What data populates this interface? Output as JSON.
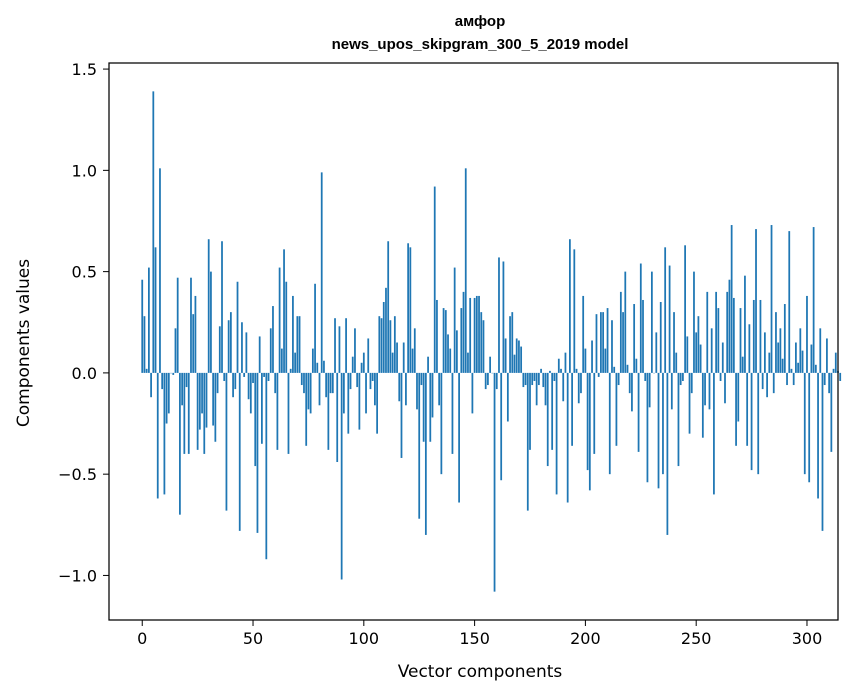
{
  "chart_data": {
    "type": "bar",
    "title": "амфор",
    "subtitle": "news_upos_skipgram_300_5_2019 model",
    "xlabel": "Vector components",
    "ylabel": "Components values",
    "xlim": [
      -15,
      314
    ],
    "ylim": [
      -1.22,
      1.53
    ],
    "xticks": [
      0,
      50,
      100,
      150,
      200,
      250,
      300
    ],
    "xtick_labels": [
      "0",
      "50",
      "100",
      "150",
      "200",
      "250",
      "300"
    ],
    "yticks": [
      -1.0,
      -0.5,
      0.0,
      0.5,
      1.0,
      1.5
    ],
    "ytick_labels": [
      "−1.0",
      "−0.5",
      "0.0",
      "0.5",
      "1.0",
      "1.5"
    ],
    "grid": false,
    "legend": null,
    "bar_color": "#1f77b4",
    "x_start": 0,
    "values": [
      0.46,
      0.28,
      0.02,
      0.52,
      -0.12,
      1.39,
      0.62,
      -0.62,
      1.01,
      -0.08,
      -0.6,
      -0.25,
      -0.2,
      0.0,
      -0.01,
      0.22,
      0.47,
      -0.7,
      -0.16,
      -0.4,
      -0.07,
      -0.4,
      0.47,
      0.29,
      0.38,
      -0.38,
      -0.28,
      -0.2,
      -0.4,
      -0.27,
      0.66,
      0.5,
      -0.26,
      -0.34,
      -0.1,
      0.23,
      0.65,
      -0.04,
      -0.68,
      0.26,
      0.3,
      -0.12,
      -0.08,
      0.45,
      -0.78,
      0.25,
      -0.02,
      0.2,
      -0.13,
      -0.2,
      -0.05,
      -0.46,
      -0.79,
      0.18,
      -0.35,
      -0.02,
      -0.92,
      -0.04,
      0.22,
      0.33,
      -0.1,
      -0.38,
      0.52,
      0.12,
      0.61,
      0.45,
      -0.4,
      0.02,
      0.38,
      0.1,
      0.28,
      0.28,
      -0.06,
      -0.1,
      -0.36,
      -0.18,
      -0.2,
      0.12,
      0.44,
      0.05,
      -0.16,
      0.99,
      0.06,
      -0.12,
      -0.38,
      -0.1,
      -0.1,
      0.27,
      -0.44,
      0.23,
      -1.02,
      -0.2,
      0.27,
      -0.3,
      -0.08,
      0.08,
      0.22,
      -0.07,
      -0.28,
      0.05,
      0.1,
      -0.2,
      0.17,
      -0.08,
      -0.04,
      -0.16,
      -0.3,
      0.28,
      0.27,
      0.35,
      0.42,
      0.65,
      0.26,
      0.1,
      0.28,
      0.15,
      -0.14,
      -0.42,
      0.15,
      -0.16,
      0.64,
      0.62,
      0.12,
      0.22,
      -0.18,
      -0.72,
      -0.06,
      -0.34,
      -0.8,
      0.08,
      -0.34,
      -0.22,
      0.92,
      0.36,
      -0.16,
      -0.5,
      0.32,
      0.31,
      0.19,
      0.12,
      -0.4,
      0.52,
      0.21,
      -0.64,
      0.32,
      0.4,
      1.01,
      0.1,
      0.37,
      -0.2,
      0.37,
      0.38,
      0.38,
      0.3,
      0.26,
      -0.08,
      -0.06,
      0.08,
      0.0,
      -1.08,
      -0.08,
      0.57,
      -0.53,
      0.55,
      0.17,
      -0.24,
      0.28,
      0.3,
      0.09,
      0.17,
      0.16,
      0.13,
      -0.07,
      -0.06,
      -0.68,
      -0.38,
      -0.06,
      -0.04,
      -0.16,
      -0.06,
      0.02,
      -0.07,
      -0.16,
      -0.46,
      0.01,
      -0.38,
      -0.04,
      -0.6,
      0.07,
      0.02,
      -0.14,
      0.1,
      -0.64,
      0.66,
      -0.36,
      0.61,
      0.02,
      -0.15,
      -0.1,
      0.38,
      0.12,
      -0.48,
      -0.58,
      0.16,
      -0.4,
      0.29,
      -0.02,
      0.3,
      0.3,
      0.12,
      0.32,
      -0.5,
      0.26,
      0.03,
      -0.36,
      -0.06,
      0.4,
      0.3,
      0.5,
      0.04,
      -0.1,
      -0.19,
      0.34,
      0.07,
      -0.39,
      0.54,
      0.36,
      -0.04,
      -0.54,
      -0.17,
      0.5,
      0.0,
      0.2,
      -0.57,
      0.35,
      -0.5,
      0.62,
      -0.8,
      0.53,
      -0.18,
      0.3,
      0.1,
      -0.46,
      -0.06,
      -0.04,
      0.63,
      0.18,
      -0.3,
      -0.1,
      0.5,
      0.2,
      0.28,
      0.14,
      -0.32,
      -0.16,
      0.4,
      -0.18,
      0.22,
      -0.6,
      0.4,
      0.32,
      -0.04,
      0.15,
      -0.15,
      0.4,
      0.46,
      0.73,
      0.37,
      -0.36,
      -0.24,
      0.32,
      0.08,
      0.48,
      -0.36,
      0.24,
      -0.48,
      0.36,
      0.71,
      -0.5,
      0.36,
      -0.08,
      0.2,
      -0.12,
      0.1,
      0.73,
      -0.1,
      0.3,
      0.15,
      0.22,
      0.07,
      0.34,
      -0.06,
      0.7,
      0.02,
      -0.06,
      0.15,
      0.05,
      0.22,
      0.11,
      -0.5,
      0.38,
      -0.54,
      0.14,
      0.72,
      0.04,
      -0.62,
      0.22,
      -0.78,
      -0.06,
      0.17,
      -0.1,
      -0.39,
      0.02,
      0.1,
      0.01,
      -0.04
    ]
  }
}
